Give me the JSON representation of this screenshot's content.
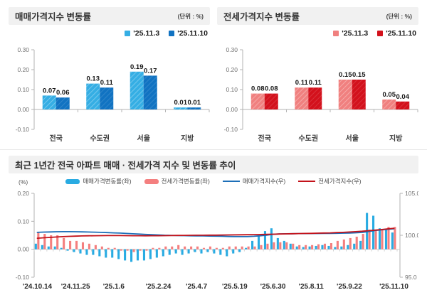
{
  "chart_data": [
    {
      "type": "bar",
      "title": "매매가격지수 변동률",
      "unit": "(단위 : %)",
      "categories": [
        "전국",
        "수도권",
        "서울",
        "지방"
      ],
      "series": [
        {
          "name": "'25.11.3",
          "color": "#35AEE4",
          "values": [
            0.07,
            0.13,
            0.19,
            0.01
          ]
        },
        {
          "name": "'25.11.10",
          "color": "#1173C2",
          "values": [
            0.06,
            0.11,
            0.17,
            0.01
          ]
        }
      ],
      "ylim": [
        -0.1,
        0.3
      ],
      "yticks": [
        "0.30",
        "0.20",
        "0.10",
        "0.00",
        "-0.10"
      ]
    },
    {
      "type": "bar",
      "title": "전세가격지수 변동률",
      "unit": "(단위 : %)",
      "categories": [
        "전국",
        "수도권",
        "서울",
        "지방"
      ],
      "series": [
        {
          "name": "'25.11.3",
          "color": "#F0807F",
          "values": [
            0.08,
            0.11,
            0.15,
            0.05
          ]
        },
        {
          "name": "'25.11.10",
          "color": "#D3111C",
          "values": [
            0.08,
            0.11,
            0.15,
            0.04
          ]
        }
      ],
      "ylim": [
        -0.1,
        0.3
      ],
      "yticks": [
        "0.30",
        "0.20",
        "0.10",
        "0.00",
        "-0.10"
      ]
    },
    {
      "type": "combo",
      "title": "최근 1년간 전국 아파트 매매 · 전세가격 지수 및 변동률 추이",
      "left_axis_label": "(%)",
      "left_range": [
        -0.1,
        0.2
      ],
      "right_range": [
        95.0,
        105.0
      ],
      "left_ticks": [
        "0.20",
        "0.10",
        "0.00",
        "-0.10"
      ],
      "right_ticks": [
        "105.0",
        "100.0",
        "95.0"
      ],
      "weeks": 57,
      "x_labels": [
        "'24.10.14",
        "'24.11.25",
        "'25.1.6",
        "'25.2.24",
        "'25.4.7",
        "'25.5.19",
        "'25.6.30",
        "'25.8.11",
        "'25.9.22",
        "'25.11.10"
      ],
      "x_label_indices": [
        0,
        6,
        12,
        19,
        25,
        31,
        37,
        43,
        49,
        56
      ],
      "legend": [
        {
          "label": "매매가격변동률(좌)",
          "swatch": "bar",
          "color": "#29ABE2"
        },
        {
          "label": "전세가격변동률(좌)",
          "swatch": "bar",
          "color": "#F47F7F"
        },
        {
          "label": "매매가격지수(우)",
          "swatch": "line",
          "color": "#1D6FB8"
        },
        {
          "label": "전세가격지수(우)",
          "swatch": "line",
          "color": "#C3121A"
        }
      ],
      "bars": [
        {
          "name": "매매가격변동률(좌)",
          "axis": "left",
          "color": "#29ABE2",
          "values": [
            0.02,
            0.015,
            0.01,
            0.01,
            0.005,
            -0.005,
            -0.01,
            -0.015,
            -0.02,
            -0.02,
            -0.025,
            -0.03,
            -0.03,
            -0.035,
            -0.04,
            -0.045,
            -0.04,
            -0.04,
            -0.035,
            -0.03,
            -0.025,
            -0.02,
            -0.015,
            -0.02,
            -0.015,
            -0.01,
            -0.015,
            -0.01,
            -0.015,
            -0.02,
            -0.025,
            -0.015,
            -0.01,
            0.005,
            0.03,
            0.05,
            0.065,
            0.075,
            0.04,
            0.03,
            0.02,
            0.01,
            0.008,
            0.01,
            0.012,
            0.015,
            0.012,
            0.008,
            0.01,
            0.015,
            0.02,
            0.03,
            0.13,
            0.12,
            0.075,
            0.07,
            0.06
          ]
        },
        {
          "name": "전세가격변동률(좌)",
          "axis": "left",
          "color": "#F47F7F",
          "values": [
            0.06,
            0.055,
            0.05,
            0.05,
            0.04,
            0.03,
            0.03,
            0.025,
            0.02,
            0.015,
            0.01,
            0.005,
            0.005,
            -0.005,
            -0.005,
            -0.01,
            -0.005,
            -0.005,
            0.005,
            0.005,
            0.01,
            0.01,
            0.015,
            0.01,
            0.01,
            0.01,
            0.005,
            0.01,
            0.005,
            0.005,
            0.01,
            0.01,
            0.01,
            0.01,
            0.01,
            0.015,
            0.02,
            0.025,
            0.025,
            0.025,
            0.02,
            0.015,
            0.015,
            0.015,
            0.018,
            0.02,
            0.022,
            0.03,
            0.035,
            0.04,
            0.045,
            0.055,
            0.07,
            0.065,
            0.07,
            0.08,
            0.08
          ]
        }
      ],
      "lines": [
        {
          "name": "매매가격지수(우)",
          "axis": "right",
          "color": "#1D6FB8",
          "values": [
            100.35,
            100.38,
            100.4,
            100.42,
            100.43,
            100.43,
            100.42,
            100.41,
            100.39,
            100.37,
            100.35,
            100.32,
            100.29,
            100.26,
            100.22,
            100.18,
            100.14,
            100.1,
            100.07,
            100.04,
            100.01,
            99.99,
            99.97,
            99.96,
            99.94,
            99.93,
            99.92,
            99.91,
            99.9,
            99.88,
            99.86,
            99.85,
            99.84,
            99.84,
            99.88,
            99.94,
            100.02,
            100.12,
            100.16,
            100.18,
            100.19,
            100.2,
            100.2,
            100.21,
            100.21,
            100.22,
            100.23,
            100.24,
            100.25,
            100.27,
            100.3,
            100.34,
            100.45,
            100.56,
            100.64,
            100.71,
            100.78
          ]
        },
        {
          "name": "전세가격지수(우)",
          "axis": "right",
          "color": "#C3121A",
          "values": [
            99.65,
            99.7,
            99.75,
            99.8,
            99.84,
            99.87,
            99.9,
            99.92,
            99.94,
            99.95,
            99.96,
            99.97,
            99.97,
            99.97,
            99.96,
            99.95,
            99.95,
            99.94,
            99.95,
            99.95,
            99.96,
            99.97,
            99.98,
            99.99,
            100.0,
            100.01,
            100.01,
            100.02,
            100.02,
            100.03,
            100.04,
            100.05,
            100.06,
            100.07,
            100.08,
            100.09,
            100.11,
            100.13,
            100.15,
            100.17,
            100.19,
            100.2,
            100.22,
            100.23,
            100.25,
            100.27,
            100.29,
            100.32,
            100.35,
            100.39,
            100.43,
            100.48,
            100.55,
            100.61,
            100.68,
            100.76,
            100.84
          ]
        }
      ]
    }
  ]
}
